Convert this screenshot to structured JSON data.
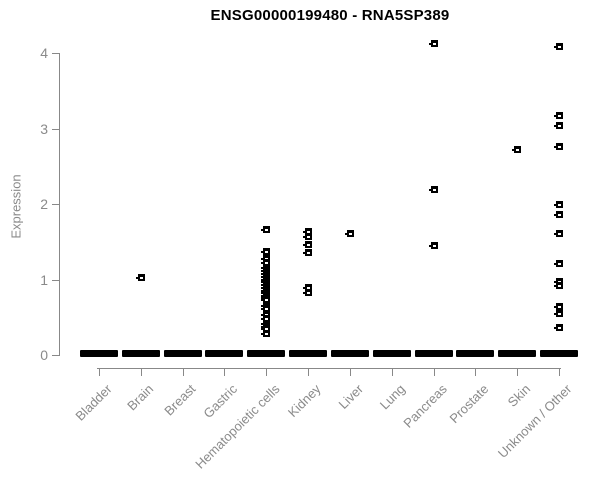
{
  "title": "ENSG00000199480 - RNA5SP389",
  "colors": {
    "background": "#ffffff",
    "point": "#000000",
    "point_inner_dash": "#ffffff",
    "axis_line": "#888888",
    "axis_text": "#8a8a8a",
    "title_text": "#000000"
  },
  "chart_data": {
    "type": "scatter",
    "title": "ENSG00000199480 - RNA5SP389",
    "xlabel": "",
    "ylabel": "Expression",
    "ylim": [
      0,
      4
    ],
    "yticks": [
      "0",
      "1",
      "2",
      "3",
      "4"
    ],
    "grid": false,
    "legend": "none",
    "point_symbol": "black-square-with-white-dash",
    "categories": [
      "Bladder",
      "Brain",
      "Breast",
      "Gastric",
      "Hematopoietic cells",
      "Kidney",
      "Liver",
      "Lung",
      "Pancreas",
      "Prostate",
      "Skin",
      "Unknown / Other"
    ],
    "series": [
      {
        "name": "Bladder",
        "zero_cluster": true,
        "values": []
      },
      {
        "name": "Brain",
        "zero_cluster": true,
        "values": [
          1.03
        ]
      },
      {
        "name": "Breast",
        "zero_cluster": true,
        "values": []
      },
      {
        "name": "Gastric",
        "zero_cluster": true,
        "values": []
      },
      {
        "name": "Hematopoietic cells",
        "zero_cluster": true,
        "values": [
          1.66,
          1.37,
          1.28,
          1.22,
          1.16,
          1.12,
          1.08,
          1.04,
          1.0,
          0.97,
          0.93,
          0.9,
          0.86,
          0.83,
          0.79,
          0.76,
          0.73,
          0.66,
          0.62,
          0.53,
          0.49,
          0.42,
          0.38,
          0.35,
          0.28
        ]
      },
      {
        "name": "Kidney",
        "zero_cluster": true,
        "values": [
          1.63,
          1.57,
          1.46,
          1.36,
          0.9,
          0.83
        ]
      },
      {
        "name": "Liver",
        "zero_cluster": true,
        "values": [
          1.61
        ]
      },
      {
        "name": "Lung",
        "zero_cluster": true,
        "values": []
      },
      {
        "name": "Pancreas",
        "zero_cluster": true,
        "values": [
          4.13,
          2.19,
          1.45
        ]
      },
      {
        "name": "Prostate",
        "zero_cluster": true,
        "values": []
      },
      {
        "name": "Skin",
        "zero_cluster": true,
        "values": [
          2.72
        ]
      },
      {
        "name": "Unknown / Other",
        "zero_cluster": true,
        "values": [
          4.08,
          3.17,
          3.04,
          2.76,
          2.0,
          1.86,
          1.61,
          1.21,
          0.97,
          0.92,
          0.64,
          0.55,
          0.36
        ]
      }
    ]
  }
}
